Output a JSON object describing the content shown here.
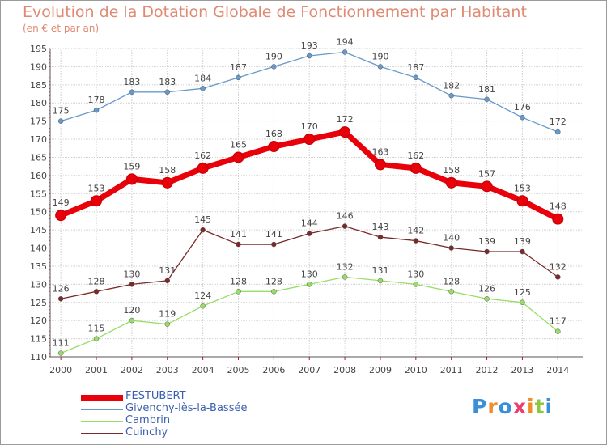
{
  "chart_data": {
    "type": "line",
    "title": "Evolution de la Dotation Globale de Fonctionnement par Habitant",
    "subtitle": "(en € et par an)",
    "x": [
      "2000",
      "2001",
      "2002",
      "2003",
      "2004",
      "2005",
      "2006",
      "2007",
      "2008",
      "2009",
      "2010",
      "2011",
      "2012",
      "2013",
      "2014"
    ],
    "ylim": [
      110,
      195
    ],
    "yticks": [
      110,
      115,
      120,
      125,
      130,
      135,
      140,
      145,
      150,
      155,
      160,
      165,
      170,
      175,
      180,
      185,
      190,
      195
    ],
    "grid": true,
    "legend_position": "bottom-left",
    "series": [
      {
        "name": "FESTUBERT",
        "color": "#e8000b",
        "values": [
          149,
          153,
          159,
          158,
          162,
          165,
          168,
          170,
          172,
          163,
          162,
          158,
          157,
          153,
          148
        ]
      },
      {
        "name": "Givenchy-lès-la-Bassée",
        "color": "#6699cc",
        "values": [
          175,
          178,
          183,
          183,
          184,
          187,
          190,
          193,
          194,
          190,
          187,
          182,
          181,
          176,
          172
        ]
      },
      {
        "name": "Cambrin",
        "color": "#99dd66",
        "values": [
          111,
          115,
          120,
          119,
          124,
          128,
          128,
          130,
          132,
          131,
          130,
          128,
          126,
          125,
          117
        ]
      },
      {
        "name": "Cuinchy",
        "color": "#7a2a2a",
        "values": [
          126,
          128,
          130,
          131,
          145,
          141,
          141,
          144,
          146,
          143,
          142,
          140,
          139,
          139,
          132
        ]
      }
    ]
  },
  "logo": {
    "text": "Proxiti",
    "colors": [
      "#3a8fd8",
      "#f28c28",
      "#3a8fd8",
      "#e83f6f",
      "#f28c28",
      "#8dc63f",
      "#3a8fd8"
    ]
  }
}
